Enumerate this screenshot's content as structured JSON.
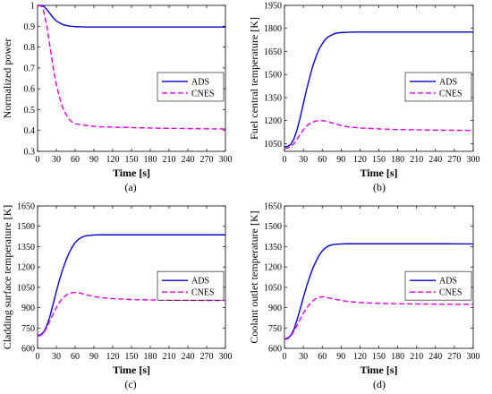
{
  "chart_data": [
    {
      "id": "a",
      "type": "line",
      "caption": "(a)",
      "xlabel": "Time [s]",
      "ylabel": "Normalized power",
      "xlim": [
        0,
        300
      ],
      "ylim": [
        0.3,
        1.0
      ],
      "xticks": [
        0,
        30,
        60,
        90,
        120,
        150,
        180,
        210,
        240,
        270,
        300
      ],
      "yticks": [
        0.3,
        0.4,
        0.5,
        0.6,
        0.7,
        0.8,
        0.9,
        1.0
      ],
      "ytick_labels": [
        "0.3",
        "0.4",
        "0.5",
        "0.6",
        "0.7",
        "0.8",
        "0.9",
        "1"
      ],
      "legend": "right",
      "series": [
        {
          "name": "ADS",
          "color": "#0000cc",
          "dash": "solid",
          "x": [
            0,
            5,
            10,
            15,
            20,
            25,
            30,
            40,
            50,
            60,
            70,
            80,
            100,
            150,
            200,
            250,
            300
          ],
          "y": [
            1.0,
            1.0,
            0.995,
            0.98,
            0.96,
            0.94,
            0.925,
            0.908,
            0.901,
            0.898,
            0.897,
            0.896,
            0.896,
            0.896,
            0.896,
            0.896,
            0.896
          ]
        },
        {
          "name": "CNES",
          "color": "#e600e6",
          "dash": "dashed",
          "x": [
            0,
            5,
            10,
            15,
            20,
            25,
            30,
            35,
            40,
            45,
            50,
            55,
            60,
            70,
            80,
            90,
            100,
            120,
            150,
            180,
            210,
            240,
            270,
            300
          ],
          "y": [
            1.0,
            1.0,
            0.97,
            0.9,
            0.8,
            0.7,
            0.62,
            0.56,
            0.51,
            0.48,
            0.455,
            0.44,
            0.432,
            0.427,
            0.423,
            0.42,
            0.418,
            0.416,
            0.414,
            0.412,
            0.41,
            0.409,
            0.408,
            0.407
          ]
        }
      ]
    },
    {
      "id": "b",
      "type": "line",
      "caption": "(b)",
      "xlabel": "Time [s]",
      "ylabel": "Fuel central temperature [K]",
      "xlim": [
        0,
        300
      ],
      "ylim": [
        1000,
        1950
      ],
      "xticks": [
        0,
        30,
        60,
        90,
        120,
        150,
        180,
        210,
        240,
        270,
        300
      ],
      "yticks": [
        1050,
        1200,
        1350,
        1500,
        1650,
        1800,
        1950
      ],
      "ytick_labels": [
        "1050",
        "1200",
        "1350",
        "1500",
        "1650",
        "1800",
        "1950"
      ],
      "legend": "right",
      "series": [
        {
          "name": "ADS",
          "color": "#0000cc",
          "dash": "solid",
          "x": [
            0,
            5,
            10,
            15,
            20,
            25,
            30,
            35,
            40,
            45,
            50,
            55,
            60,
            65,
            70,
            80,
            90,
            100,
            110,
            120,
            150,
            200,
            250,
            300
          ],
          "y": [
            1030,
            1032,
            1045,
            1080,
            1140,
            1220,
            1310,
            1400,
            1480,
            1555,
            1615,
            1665,
            1700,
            1728,
            1747,
            1767,
            1773,
            1775,
            1776,
            1776,
            1776,
            1776,
            1776,
            1776
          ]
        },
        {
          "name": "CNES",
          "color": "#e600e6",
          "dash": "dashed",
          "x": [
            0,
            5,
            10,
            15,
            20,
            25,
            30,
            35,
            40,
            45,
            50,
            55,
            60,
            65,
            70,
            80,
            90,
            100,
            120,
            150,
            180,
            210,
            240,
            270,
            300
          ],
          "y": [
            1020,
            1022,
            1030,
            1050,
            1080,
            1110,
            1140,
            1163,
            1180,
            1191,
            1197,
            1200,
            1200,
            1197,
            1192,
            1180,
            1168,
            1160,
            1152,
            1146,
            1142,
            1140,
            1138,
            1137,
            1136
          ]
        }
      ]
    },
    {
      "id": "c",
      "type": "line",
      "caption": "(c)",
      "xlabel": "Time [s]",
      "ylabel": "Cladding surface temperature [K]",
      "xlim": [
        0,
        300
      ],
      "ylim": [
        600,
        1650
      ],
      "xticks": [
        0,
        30,
        60,
        90,
        120,
        150,
        180,
        210,
        240,
        270,
        300
      ],
      "yticks": [
        600,
        750,
        900,
        1050,
        1200,
        1350,
        1500,
        1650
      ],
      "ytick_labels": [
        "600",
        "750",
        "900",
        "1050",
        "1200",
        "1350",
        "1500",
        "1650"
      ],
      "legend": "right",
      "series": [
        {
          "name": "ADS",
          "color": "#0000cc",
          "dash": "solid",
          "x": [
            0,
            5,
            10,
            15,
            20,
            25,
            30,
            35,
            40,
            45,
            50,
            55,
            60,
            65,
            70,
            75,
            80,
            90,
            100,
            120,
            150,
            200,
            250,
            300
          ],
          "y": [
            695,
            700,
            720,
            770,
            840,
            930,
            1020,
            1105,
            1180,
            1245,
            1300,
            1345,
            1380,
            1403,
            1418,
            1427,
            1432,
            1436,
            1437,
            1437,
            1437,
            1437,
            1437,
            1437
          ]
        },
        {
          "name": "CNES",
          "color": "#e600e6",
          "dash": "dashed",
          "x": [
            0,
            5,
            10,
            15,
            20,
            25,
            30,
            35,
            40,
            45,
            50,
            55,
            60,
            65,
            70,
            80,
            90,
            100,
            120,
            150,
            180,
            210,
            240,
            270,
            300
          ],
          "y": [
            690,
            695,
            715,
            755,
            805,
            855,
            900,
            940,
            970,
            990,
            1003,
            1010,
            1012,
            1010,
            1005,
            993,
            982,
            975,
            966,
            960,
            957,
            955,
            954,
            953,
            953
          ]
        }
      ]
    },
    {
      "id": "d",
      "type": "line",
      "caption": "(d)",
      "xlabel": "Time [s]",
      "ylabel": "Coolant outlet temperature [K]",
      "xlim": [
        0,
        300
      ],
      "ylim": [
        600,
        1650
      ],
      "xticks": [
        0,
        30,
        60,
        90,
        120,
        150,
        180,
        210,
        240,
        270,
        300
      ],
      "yticks": [
        600,
        750,
        900,
        1050,
        1200,
        1350,
        1500,
        1650
      ],
      "ytick_labels": [
        "600",
        "750",
        "900",
        "1050",
        "1200",
        "1350",
        "1500",
        "1650"
      ],
      "legend": "right",
      "series": [
        {
          "name": "ADS",
          "color": "#0000cc",
          "dash": "solid",
          "x": [
            0,
            5,
            10,
            15,
            20,
            25,
            30,
            35,
            40,
            45,
            50,
            55,
            60,
            65,
            70,
            75,
            80,
            90,
            100,
            120,
            150,
            200,
            250,
            300
          ],
          "y": [
            670,
            675,
            695,
            740,
            810,
            890,
            975,
            1055,
            1125,
            1190,
            1240,
            1285,
            1318,
            1340,
            1355,
            1363,
            1367,
            1370,
            1371,
            1371,
            1371,
            1371,
            1371,
            1370
          ]
        },
        {
          "name": "CNES",
          "color": "#e600e6",
          "dash": "dashed",
          "x": [
            0,
            5,
            10,
            15,
            20,
            25,
            30,
            35,
            40,
            45,
            50,
            55,
            60,
            65,
            70,
            80,
            90,
            100,
            120,
            150,
            180,
            210,
            240,
            270,
            300
          ],
          "y": [
            665,
            670,
            690,
            725,
            770,
            815,
            858,
            895,
            925,
            950,
            967,
            976,
            980,
            977,
            972,
            962,
            953,
            946,
            938,
            932,
            929,
            927,
            926,
            925,
            925
          ]
        }
      ]
    }
  ]
}
